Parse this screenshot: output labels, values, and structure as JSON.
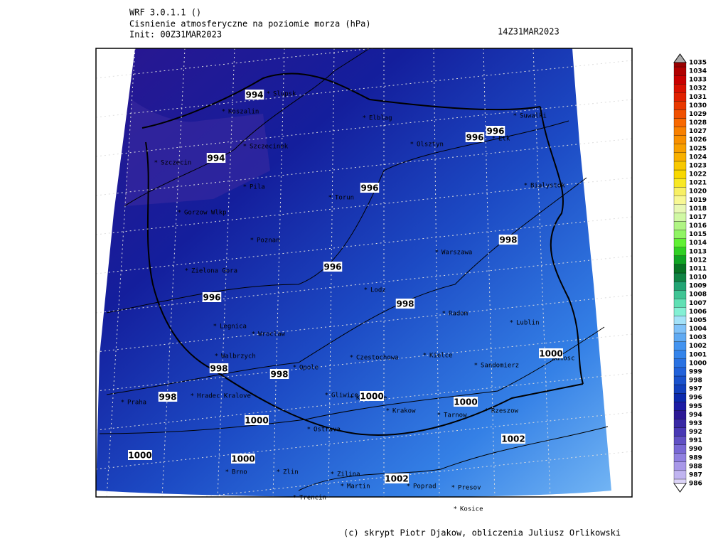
{
  "header": {
    "model": "WRF 3.0.1.1 ()",
    "title": "Cisnienie atmosferyczne na poziomie morza (hPa)",
    "init": "Init: 00Z31MAR2023",
    "valid": "14Z31MAR2023"
  },
  "cities": [
    "Slupsk",
    "Koszalin",
    "Elblag",
    "Suwalki",
    "Szczecinek",
    "Olsztyn",
    "Elk",
    "Szczecin",
    "Pila",
    "Torun",
    "Bialystok",
    "Gorzow Wlkp",
    "Poznan",
    "Warszawa",
    "Zielona Gora",
    "Lodz",
    "Radom",
    "Legnica",
    "Wroclaw",
    "Lublin",
    "Walbrzych",
    "Opole",
    "Czestochowa",
    "Kielce",
    "Sandomierz",
    "Zamosc",
    "Praha",
    "Hradec Kralove",
    "Gliwice",
    "Katowice",
    "Krakow",
    "Tarnow",
    "Rzeszow",
    "Ostrava",
    "Brno",
    "Zlin",
    "Zilina",
    "Martin",
    "Poprad",
    "Presov",
    "Trencin",
    "Kosice"
  ],
  "contour_labels": [
    994,
    994,
    996,
    996,
    996,
    998,
    996,
    996,
    998,
    1000,
    998,
    998,
    998,
    1000,
    1000,
    1000,
    1002,
    1000,
    1000,
    1002
  ],
  "legend": {
    "levels": [
      986,
      987,
      988,
      989,
      990,
      991,
      992,
      993,
      994,
      995,
      996,
      997,
      998,
      999,
      1000,
      1001,
      1002,
      1003,
      1004,
      1005,
      1006,
      1007,
      1008,
      1009,
      1010,
      1011,
      1012,
      1013,
      1014,
      1015,
      1016,
      1017,
      1018,
      1019,
      1020,
      1021,
      1022,
      1023,
      1024,
      1025,
      1026,
      1027,
      1028,
      1029,
      1030,
      1031,
      1032,
      1033,
      1034,
      1035
    ],
    "colors": [
      "#dcd4f8",
      "#c0b4f0",
      "#a898e8",
      "#9080e0",
      "#7868d4",
      "#6050c4",
      "#4838b4",
      "#3828a4",
      "#2c1894",
      "#1c1ca4",
      "#0c2aac",
      "#1240bc",
      "#1a52cc",
      "#2262da",
      "#2a72e2",
      "#3484ea",
      "#4494f0",
      "#60aaf2",
      "#80c2f8",
      "#a4e2f8",
      "#84f0d4",
      "#60e0b4",
      "#40c494",
      "#22a474",
      "#108444",
      "#087424",
      "#10a424",
      "#30d024",
      "#60f034",
      "#90f464",
      "#b0f484",
      "#d0f8a4",
      "#e8f8b4",
      "#f8f894",
      "#f8f064",
      "#f8e824",
      "#f8d800",
      "#f8c800",
      "#f8b000",
      "#f8a000",
      "#f89000",
      "#f88000",
      "#f86800",
      "#f05000",
      "#e83800",
      "#e02000",
      "#d81000",
      "#c80000",
      "#b00000",
      "#980000"
    ]
  },
  "footer": "(c) skrypt Piotr Djakow, obliczenia Juliusz Orlikowski"
}
